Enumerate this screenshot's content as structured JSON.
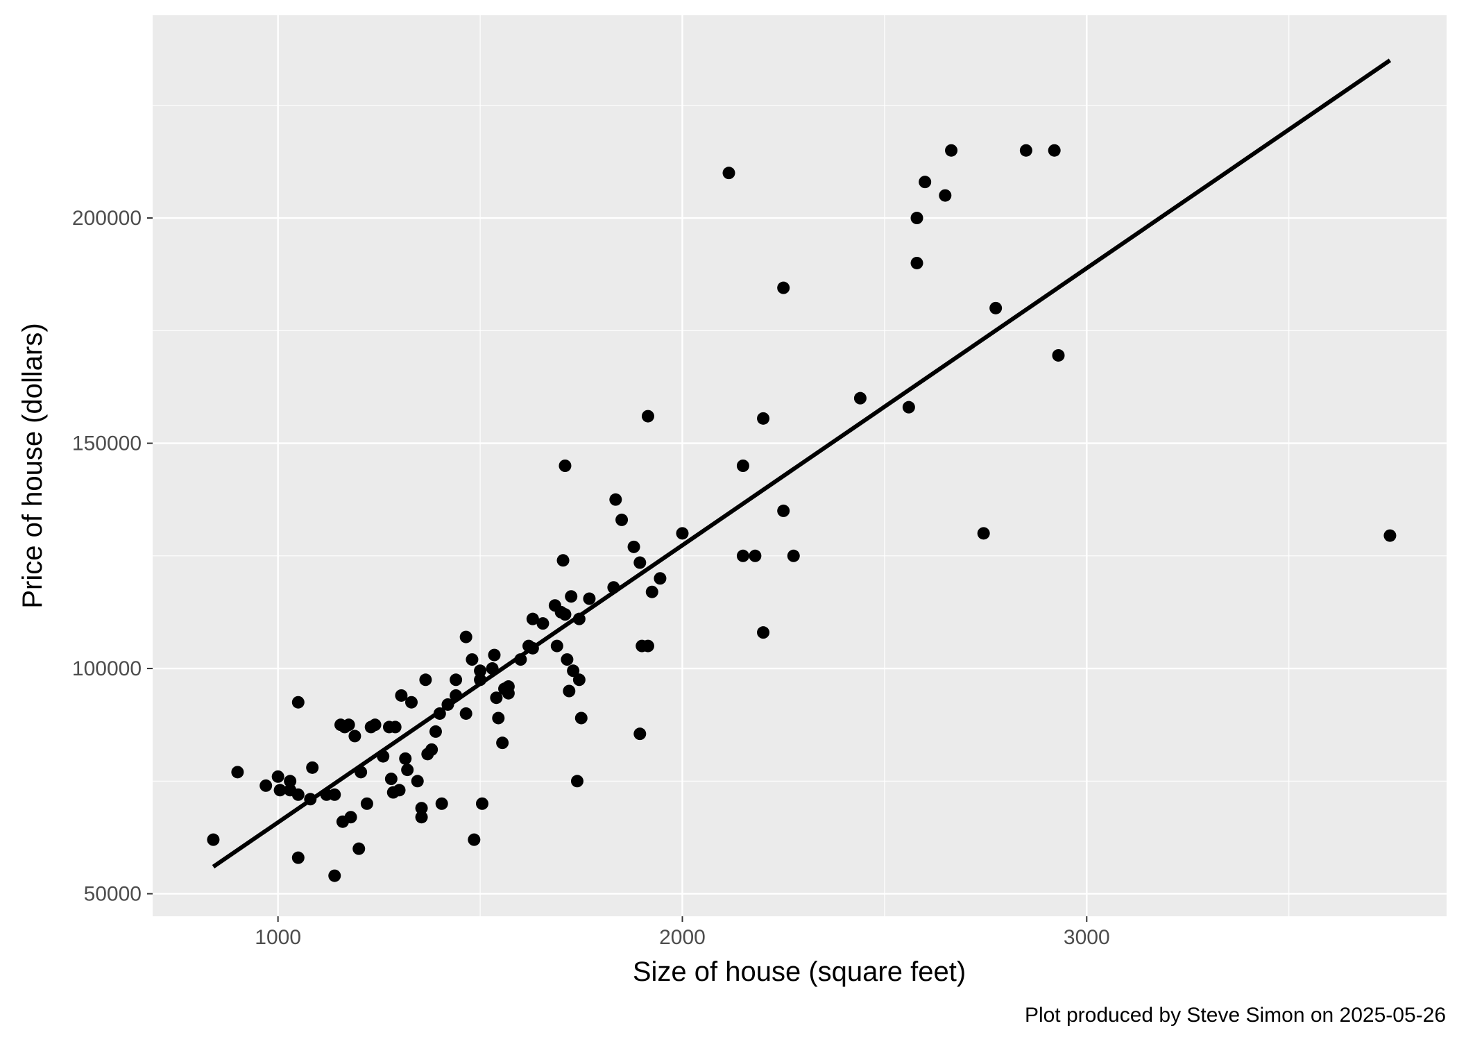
{
  "chart_data": {
    "type": "scatter",
    "xlabel": "Size of house (square feet)",
    "ylabel": "Price of house (dollars)",
    "caption": "Plot produced by Steve Simon on 2025-05-26",
    "xlim": [
      690,
      3890
    ],
    "ylim": [
      45000,
      245000
    ],
    "x_ticks": [
      1000,
      2000,
      3000
    ],
    "y_ticks": [
      50000,
      100000,
      150000,
      200000
    ],
    "grid": true,
    "legend": "none",
    "colors": {
      "panel": "#ebebeb",
      "grid": "#ffffff",
      "point": "#000000",
      "line": "#000000",
      "tick_text": "#4d4d4d"
    },
    "fit_line": {
      "x": [
        840,
        3750
      ],
      "y": [
        56000,
        235000
      ]
    },
    "points": [
      [
        840,
        62000
      ],
      [
        900,
        77000
      ],
      [
        970,
        74000
      ],
      [
        1000,
        76000
      ],
      [
        1005,
        73000
      ],
      [
        1030,
        75000
      ],
      [
        1030,
        73000
      ],
      [
        1050,
        72000
      ],
      [
        1050,
        92500
      ],
      [
        1050,
        58000
      ],
      [
        1080,
        71000
      ],
      [
        1085,
        78000
      ],
      [
        1120,
        72000
      ],
      [
        1140,
        72000
      ],
      [
        1140,
        54000
      ],
      [
        1155,
        87500
      ],
      [
        1160,
        66000
      ],
      [
        1165,
        87000
      ],
      [
        1175,
        87500
      ],
      [
        1180,
        67000
      ],
      [
        1190,
        85000
      ],
      [
        1200,
        60000
      ],
      [
        1205,
        77000
      ],
      [
        1220,
        70000
      ],
      [
        1230,
        87000
      ],
      [
        1240,
        87500
      ],
      [
        1260,
        80500
      ],
      [
        1275,
        87000
      ],
      [
        1280,
        75500
      ],
      [
        1285,
        72500
      ],
      [
        1290,
        87000
      ],
      [
        1300,
        73000
      ],
      [
        1305,
        94000
      ],
      [
        1315,
        80000
      ],
      [
        1320,
        77500
      ],
      [
        1330,
        92500
      ],
      [
        1345,
        75000
      ],
      [
        1355,
        69000
      ],
      [
        1355,
        67000
      ],
      [
        1365,
        97500
      ],
      [
        1370,
        81000
      ],
      [
        1380,
        82000
      ],
      [
        1390,
        86000
      ],
      [
        1400,
        90000
      ],
      [
        1405,
        70000
      ],
      [
        1420,
        92000
      ],
      [
        1440,
        94000
      ],
      [
        1440,
        97500
      ],
      [
        1465,
        90000
      ],
      [
        1465,
        107000
      ],
      [
        1480,
        102000
      ],
      [
        1485,
        62000
      ],
      [
        1500,
        99500
      ],
      [
        1500,
        97500
      ],
      [
        1505,
        70000
      ],
      [
        1530,
        100000
      ],
      [
        1535,
        103000
      ],
      [
        1540,
        93500
      ],
      [
        1545,
        89000
      ],
      [
        1555,
        83500
      ],
      [
        1560,
        95500
      ],
      [
        1570,
        94500
      ],
      [
        1570,
        96000
      ],
      [
        1600,
        102000
      ],
      [
        1620,
        105000
      ],
      [
        1630,
        111000
      ],
      [
        1630,
        104500
      ],
      [
        1655,
        110000
      ],
      [
        1685,
        114000
      ],
      [
        1690,
        105000
      ],
      [
        1700,
        112500
      ],
      [
        1705,
        124000
      ],
      [
        1710,
        145000
      ],
      [
        1710,
        112000
      ],
      [
        1715,
        102000
      ],
      [
        1720,
        95000
      ],
      [
        1725,
        116000
      ],
      [
        1730,
        99500
      ],
      [
        1740,
        75000
      ],
      [
        1745,
        97500
      ],
      [
        1745,
        111000
      ],
      [
        1750,
        89000
      ],
      [
        1770,
        115500
      ],
      [
        1830,
        118000
      ],
      [
        1835,
        137500
      ],
      [
        1850,
        133000
      ],
      [
        1880,
        127000
      ],
      [
        1895,
        123500
      ],
      [
        1895,
        85500
      ],
      [
        1900,
        105000
      ],
      [
        1915,
        105000
      ],
      [
        1915,
        156000
      ],
      [
        1925,
        117000
      ],
      [
        1945,
        120000
      ],
      [
        2000,
        130000
      ],
      [
        2115,
        210000
      ],
      [
        2150,
        145000
      ],
      [
        2150,
        125000
      ],
      [
        2180,
        125000
      ],
      [
        2200,
        108000
      ],
      [
        2200,
        155500
      ],
      [
        2250,
        135000
      ],
      [
        2250,
        184500
      ],
      [
        2275,
        125000
      ],
      [
        2440,
        160000
      ],
      [
        2560,
        158000
      ],
      [
        2580,
        200000
      ],
      [
        2580,
        190000
      ],
      [
        2600,
        208000
      ],
      [
        2650,
        205000
      ],
      [
        2665,
        215000
      ],
      [
        2745,
        130000
      ],
      [
        2775,
        180000
      ],
      [
        2850,
        215000
      ],
      [
        2920,
        215000
      ],
      [
        2930,
        169500
      ],
      [
        3750,
        129500
      ]
    ]
  }
}
